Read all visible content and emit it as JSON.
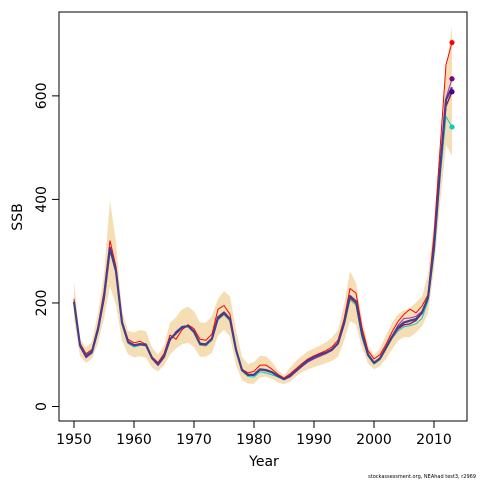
{
  "chart_data": {
    "type": "line",
    "xlabel": "Year",
    "ylabel": "SSB",
    "xlim": [
      1947.5,
      2015.5
    ],
    "ylim": [
      -28,
      762
    ],
    "x_ticks": [
      1950,
      1960,
      1970,
      1980,
      1990,
      2000,
      2010
    ],
    "y_ticks": [
      0,
      200,
      400,
      600
    ],
    "footnote": "stockassessment.org, NEAhad test3, r2969",
    "x": [
      1950,
      1951,
      1952,
      1953,
      1954,
      1955,
      1956,
      1957,
      1958,
      1959,
      1960,
      1961,
      1962,
      1963,
      1964,
      1965,
      1966,
      1967,
      1968,
      1969,
      1970,
      1971,
      1972,
      1973,
      1974,
      1975,
      1976,
      1977,
      1978,
      1979,
      1980,
      1981,
      1982,
      1983,
      1984,
      1985,
      1986,
      1987,
      1988,
      1989,
      1990,
      1991,
      1992,
      1993,
      1994,
      1995,
      1996,
      1997,
      1998,
      1999,
      2000,
      2001,
      2002,
      2003,
      2004,
      2005,
      2006,
      2007,
      2008,
      2009,
      2010,
      2011,
      2012,
      2013
    ],
    "confidence_band": {
      "color": "#f5deb3",
      "lower": [
        170,
        97,
        84,
        92,
        122,
        170,
        232,
        196,
        128,
        101,
        95,
        97,
        94,
        75,
        68,
        79,
        100,
        112,
        120,
        123,
        115,
        96,
        96,
        104,
        137,
        148,
        135,
        80,
        51,
        44,
        44,
        56,
        58,
        53,
        47,
        43,
        48,
        58,
        66,
        72,
        76,
        80,
        84,
        88,
        96,
        126,
        165,
        158,
        113,
        83,
        72,
        78,
        92,
        110,
        127,
        134,
        134,
        143,
        155,
        180,
        265,
        390,
        505,
        485
      ],
      "upper": [
        242,
        130,
        114,
        125,
        180,
        255,
        398,
        318,
        185,
        146,
        143,
        148,
        145,
        114,
        100,
        117,
        162,
        172,
        188,
        193,
        184,
        162,
        162,
        175,
        208,
        223,
        213,
        148,
        96,
        82,
        86,
        98,
        97,
        86,
        70,
        60,
        75,
        88,
        98,
        107,
        112,
        118,
        124,
        133,
        148,
        195,
        262,
        238,
        168,
        118,
        98,
        113,
        138,
        162,
        178,
        186,
        190,
        201,
        213,
        255,
        353,
        487,
        648,
        735
      ]
    },
    "series": [
      {
        "color": "#1e90ff",
        "values": [
          200,
          118,
          96,
          105,
          148,
          210,
          305,
          262,
          162,
          125,
          118,
          120,
          118,
          93,
          80,
          95,
          130,
          145,
          155,
          156,
          145,
          121,
          120,
          131,
          170,
          180,
          168,
          110,
          71,
          61,
          61,
          72,
          70,
          67,
          59,
          52,
          58,
          69,
          79,
          89,
          95,
          100,
          104,
          110,
          122,
          160,
          211,
          200,
          138,
          99,
          83,
          92,
          112,
          133,
          150,
          158,
          160,
          167,
          180,
          212,
          305,
          452,
          580,
          610
        ]
      },
      {
        "color": "#00ced1",
        "values": [
          205,
          122,
          100,
          108,
          152,
          213,
          300,
          258,
          160,
          122,
          115,
          118,
          122,
          95,
          82,
          97,
          127,
          142,
          152,
          154,
          142,
          118,
          117,
          128,
          167,
          177,
          165,
          109,
          69,
          58,
          57,
          67,
          65,
          61,
          57,
          53,
          60,
          70,
          80,
          91,
          97,
          102,
          105,
          110,
          120,
          156,
          206,
          196,
          133,
          97,
          82,
          90,
          111,
          131,
          146,
          154,
          156,
          160,
          170,
          204,
          295,
          440,
          560,
          540
        ]
      },
      {
        "color": "#ff8c00",
        "values": [
          200,
          117,
          95,
          104,
          147,
          208,
          303,
          260,
          163,
          126,
          119,
          120,
          118,
          93,
          81,
          96,
          128,
          143,
          153,
          155,
          143,
          119,
          118,
          129,
          168,
          178,
          166,
          108,
          70,
          61,
          60,
          70,
          69,
          66,
          58,
          52,
          58,
          68,
          78,
          88,
          94,
          99,
          103,
          109,
          121,
          158,
          208,
          198,
          137,
          98,
          83,
          91,
          111,
          132,
          149,
          157,
          159,
          166,
          179,
          211,
          303,
          450,
          578,
          605
        ]
      },
      {
        "color": "#ff0000",
        "values": [
          208,
          122,
          102,
          110,
          155,
          222,
          320,
          270,
          165,
          130,
          123,
          126,
          120,
          96,
          85,
          102,
          138,
          130,
          148,
          158,
          150,
          130,
          128,
          140,
          188,
          195,
          178,
          113,
          72,
          65,
          68,
          80,
          80,
          72,
          62,
          55,
          63,
          73,
          83,
          92,
          98,
          103,
          108,
          115,
          128,
          168,
          228,
          219,
          152,
          108,
          92,
          100,
          120,
          144,
          164,
          178,
          188,
          181,
          194,
          216,
          332,
          496,
          660,
          703
        ]
      },
      {
        "color": "#9932cc",
        "values": [
          198,
          115,
          94,
          103,
          145,
          205,
          305,
          258,
          161,
          123,
          117,
          119,
          117,
          92,
          79,
          94,
          129,
          144,
          154,
          155,
          144,
          120,
          119,
          130,
          171,
          181,
          169,
          109,
          70,
          60,
          60,
          71,
          69,
          65,
          58,
          52,
          57,
          67,
          77,
          86,
          92,
          97,
          102,
          108,
          121,
          160,
          215,
          204,
          140,
          100,
          84,
          93,
          114,
          136,
          157,
          170,
          171,
          174,
          184,
          207,
          304,
          451,
          596,
          633
        ]
      },
      {
        "color": "#800080",
        "values": [
          201,
          117,
          96,
          105,
          148,
          209,
          304,
          261,
          162,
          125,
          118,
          120,
          118,
          93,
          81,
          95,
          129,
          144,
          154,
          156,
          144,
          120,
          119,
          130,
          169,
          179,
          167,
          109,
          70,
          61,
          61,
          71,
          69,
          66,
          58,
          52,
          58,
          68,
          78,
          88,
          94,
          99,
          103,
          109,
          121,
          159,
          210,
          200,
          138,
          99,
          83,
          92,
          112,
          133,
          150,
          158,
          160,
          166,
          180,
          211,
          304,
          451,
          580,
          608
        ]
      }
    ],
    "endpoints": [
      {
        "color": "#ff0000",
        "x": 2013,
        "y": 703
      },
      {
        "color": "#800080",
        "x": 2013,
        "y": 633
      },
      {
        "color": "#4b0082",
        "x": 2013,
        "y": 608
      },
      {
        "color": "#00ced1",
        "x": 2013,
        "y": 540
      }
    ],
    "estimate_line": {
      "color": "#483d8b"
    }
  }
}
